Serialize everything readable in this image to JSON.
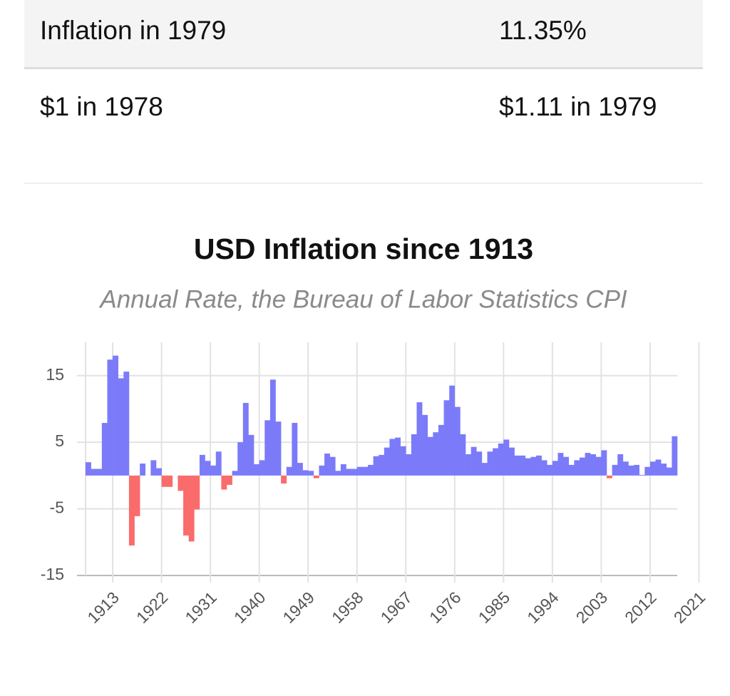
{
  "table": {
    "rows": [
      [
        "Inflation in 1979",
        "11.35%"
      ],
      [
        "$1 in 1978",
        "$1.11 in 1979"
      ]
    ]
  },
  "chart_data": {
    "type": "bar",
    "title": "USD Inflation since 1913",
    "subtitle": "Annual Rate, the Bureau of Labor Statistics CPI",
    "categories": [
      "1913",
      null,
      null,
      null,
      null,
      null,
      null,
      null,
      null,
      "1922",
      null,
      null,
      null,
      null,
      null,
      null,
      null,
      null,
      "1931",
      null,
      null,
      null,
      null,
      null,
      null,
      null,
      null,
      "1940",
      null,
      null,
      null,
      null,
      null,
      null,
      null,
      null,
      "1949",
      null,
      null,
      null,
      null,
      null,
      null,
      null,
      null,
      "1958",
      null,
      null,
      null,
      null,
      null,
      null,
      null,
      null,
      "1967",
      null,
      null,
      null,
      null,
      null,
      null,
      null,
      null,
      "1976",
      null,
      null,
      null,
      null,
      null,
      null,
      null,
      null,
      "1985",
      null,
      null,
      null,
      null,
      null,
      null,
      null,
      null,
      "1994",
      null,
      null,
      null,
      null,
      null,
      null,
      null,
      null,
      "2003",
      null,
      null,
      null,
      null,
      null,
      null,
      null,
      null,
      "2012",
      null,
      null,
      null,
      null,
      null,
      null,
      null,
      null,
      "2021"
    ],
    "values": [
      2.0,
      1.0,
      1.0,
      7.9,
      17.4,
      18.0,
      14.6,
      15.6,
      -10.5,
      -6.1,
      1.8,
      0.0,
      2.3,
      1.1,
      -1.7,
      -1.7,
      0.0,
      -2.3,
      -9.0,
      -9.9,
      -5.1,
      3.1,
      2.2,
      1.5,
      3.6,
      -2.1,
      -1.4,
      0.7,
      5.0,
      10.9,
      6.1,
      1.7,
      2.3,
      8.3,
      14.4,
      8.1,
      -1.2,
      1.3,
      7.9,
      1.9,
      0.8,
      0.7,
      -0.4,
      1.5,
      3.3,
      2.8,
      0.7,
      1.7,
      1.0,
      1.0,
      1.3,
      1.3,
      1.6,
      2.9,
      3.1,
      4.2,
      5.5,
      5.7,
      4.4,
      3.2,
      6.2,
      11.0,
      9.1,
      5.8,
      6.5,
      7.6,
      11.3,
      13.5,
      10.3,
      6.2,
      3.2,
      4.3,
      3.6,
      1.9,
      3.6,
      4.1,
      4.8,
      5.4,
      4.2,
      3.0,
      3.0,
      2.6,
      2.8,
      3.0,
      2.3,
      1.6,
      2.2,
      3.4,
      2.8,
      1.6,
      2.3,
      2.7,
      3.4,
      3.2,
      2.8,
      3.8,
      -0.4,
      1.6,
      3.2,
      2.1,
      1.5,
      1.6,
      0.1,
      1.3,
      2.1,
      2.4,
      1.8,
      1.2,
      5.9
    ],
    "color": "#7b7bfa",
    "negative_color": "#fa6b6b",
    "ylim": [
      -15,
      20
    ],
    "yticks": [
      -15,
      -5,
      5,
      15
    ],
    "grid": true
  }
}
